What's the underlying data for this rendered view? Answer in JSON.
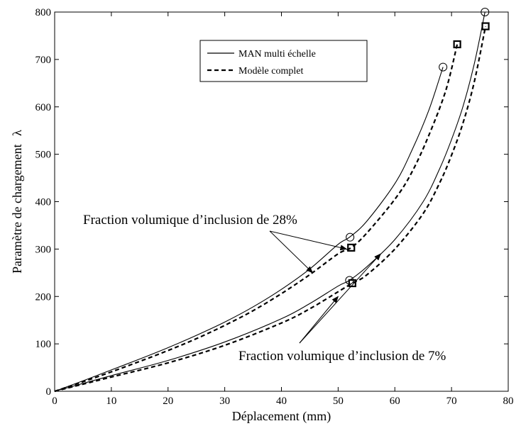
{
  "chart_data": {
    "type": "line",
    "xlabel": "Déplacement (mm)",
    "ylabel": "Paramètre de chargement",
    "ylabel_symbol": "λ",
    "xlim": [
      0,
      80
    ],
    "ylim": [
      0,
      800
    ],
    "xticks": [
      0,
      10,
      20,
      30,
      40,
      50,
      60,
      70,
      80
    ],
    "yticks": [
      0,
      100,
      200,
      300,
      400,
      500,
      600,
      700,
      800
    ],
    "grid": false,
    "legend": {
      "position": "top-center",
      "entries": [
        {
          "label": "MAN multi échelle",
          "style": "solid"
        },
        {
          "label": "Modèle complet",
          "style": "dashed"
        }
      ]
    },
    "series": [
      {
        "name": "MAN multi échelle",
        "group": "28%",
        "style": "solid",
        "x": [
          0,
          5,
          10,
          15,
          20,
          25,
          30,
          35,
          40,
          45,
          50,
          52,
          55,
          60,
          63,
          66,
          68.5
        ],
        "y": [
          0,
          22,
          45,
          68,
          92,
          118,
          146,
          178,
          215,
          258,
          310,
          325,
          358,
          438,
          508,
          593,
          684
        ],
        "markers": [
          {
            "x": 52.1,
            "y": 325,
            "symbol": "circle"
          },
          {
            "x": 68.5,
            "y": 684,
            "symbol": "circle"
          }
        ]
      },
      {
        "name": "Modèle complet",
        "group": "28%",
        "style": "dashed",
        "x": [
          0,
          5,
          10,
          15,
          20,
          25,
          30,
          35,
          40,
          45,
          50,
          52.3,
          55,
          60,
          63,
          66,
          69,
          71
        ],
        "y": [
          0,
          20,
          41,
          63,
          86,
          111,
          139,
          170,
          206,
          246,
          290,
          303,
          333,
          405,
          462,
          540,
          635,
          732
        ],
        "markers": [
          {
            "x": 52.3,
            "y": 303,
            "symbol": "square"
          },
          {
            "x": 71.0,
            "y": 732,
            "symbol": "square"
          }
        ]
      },
      {
        "name": "MAN multi échelle",
        "group": "7%",
        "style": "solid",
        "x": [
          0,
          10,
          20,
          30,
          40,
          45,
          50,
          52,
          55,
          60,
          65,
          68,
          70,
          72,
          74,
          75.9
        ],
        "y": [
          0,
          33,
          65,
          104,
          153,
          185,
          222,
          234,
          262,
          320,
          400,
          472,
          531,
          600,
          690,
          800
        ],
        "markers": [
          {
            "x": 52.0,
            "y": 234,
            "symbol": "circle"
          },
          {
            "x": 75.9,
            "y": 800,
            "symbol": "circle"
          }
        ]
      },
      {
        "name": "Modèle complet",
        "group": "7%",
        "style": "dashed",
        "x": [
          0,
          10,
          20,
          30,
          40,
          45,
          50,
          52.5,
          55,
          60,
          65,
          68,
          70,
          72,
          74,
          76
        ],
        "y": [
          0,
          30,
          60,
          97,
          144,
          174,
          210,
          228,
          245,
          300,
          375,
          442,
          498,
          565,
          652,
          770
        ],
        "markers": [
          {
            "x": 52.5,
            "y": 228,
            "symbol": "square"
          },
          {
            "x": 76.0,
            "y": 770,
            "symbol": "square"
          }
        ]
      }
    ],
    "annotations": [
      {
        "text": "Fraction volumique d’inclusion de 28%",
        "arrow_targets": [
          {
            "x": 51.5,
            "y": 300
          },
          {
            "x": 45.5,
            "y": 250
          }
        ]
      },
      {
        "text": "Fraction volumique d’inclusion de 7%",
        "arrow_targets": [
          {
            "x": 50.0,
            "y": 200
          },
          {
            "x": 57.5,
            "y": 290
          }
        ]
      }
    ]
  }
}
